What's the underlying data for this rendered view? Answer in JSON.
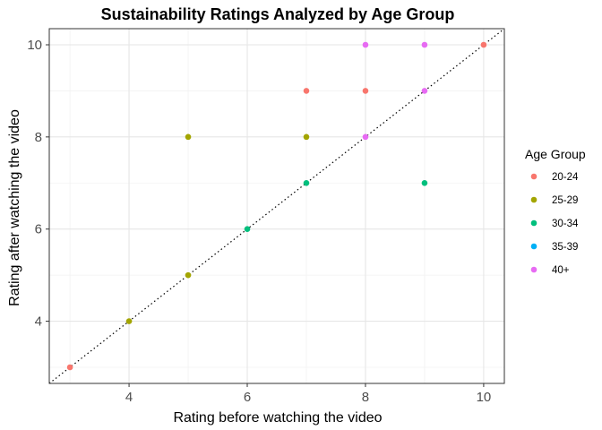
{
  "chart_data": {
    "type": "scatter",
    "title": "Sustainability Ratings Analyzed by Age Group",
    "xlabel": "Rating before watching the video",
    "ylabel": "Rating after watching the video",
    "xlim": [
      2.65,
      10.35
    ],
    "ylim": [
      2.65,
      10.35
    ],
    "x_ticks": [
      4,
      6,
      8,
      10
    ],
    "y_ticks": [
      4,
      6,
      8,
      10
    ],
    "x_tick_labels": [
      "4",
      "6",
      "8",
      "10"
    ],
    "y_tick_labels": [
      "4",
      "6",
      "8",
      "10"
    ],
    "grid": true,
    "reference_line": {
      "type": "identity",
      "style": "dotted",
      "color": "#000000"
    },
    "legend": {
      "title": "Age Group",
      "position": "right"
    },
    "series": [
      {
        "name": "20-24",
        "color": "#F8766D",
        "points": [
          [
            3,
            3
          ],
          [
            7,
            9
          ],
          [
            8,
            9
          ],
          [
            10,
            10
          ]
        ]
      },
      {
        "name": "25-29",
        "color": "#A3A500",
        "points": [
          [
            4,
            4
          ],
          [
            5,
            5
          ],
          [
            5,
            8
          ],
          [
            7,
            8
          ]
        ]
      },
      {
        "name": "30-34",
        "color": "#00BF7D",
        "points": [
          [
            6,
            6
          ],
          [
            7,
            7
          ],
          [
            9,
            7
          ]
        ]
      },
      {
        "name": "35-39",
        "color": "#00B0F6",
        "points": []
      },
      {
        "name": "40+",
        "color": "#E76BF3",
        "points": [
          [
            8,
            8
          ],
          [
            8,
            10
          ],
          [
            9,
            9
          ],
          [
            9,
            10
          ]
        ]
      }
    ]
  }
}
